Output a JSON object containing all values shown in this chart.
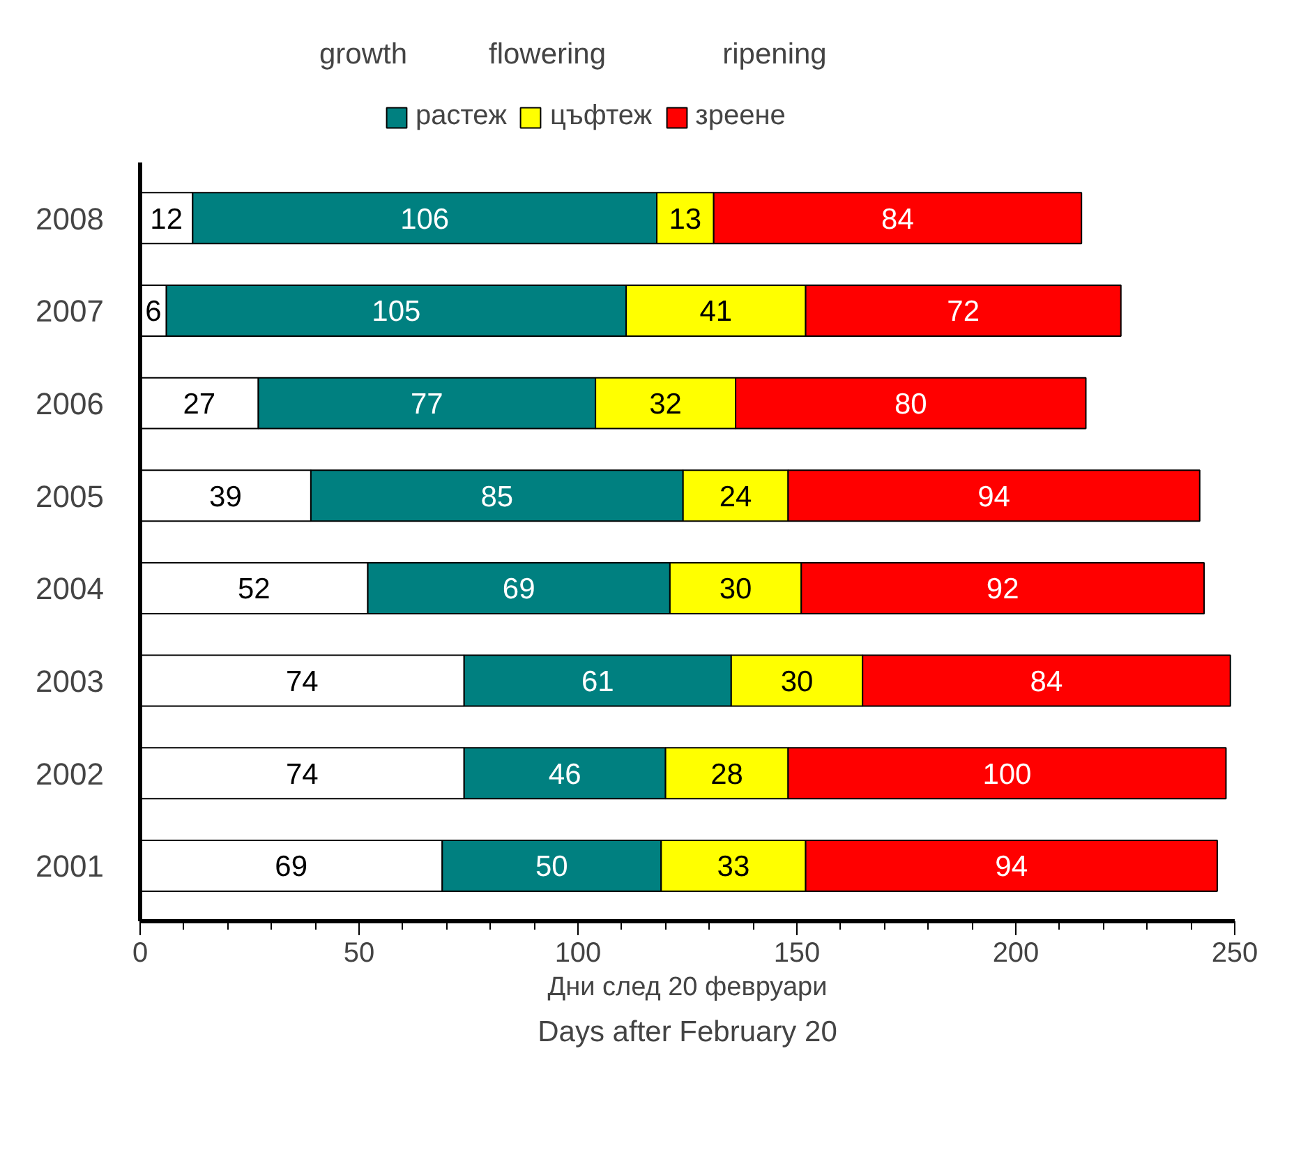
{
  "chart_data": {
    "type": "bar",
    "orientation": "horizontal",
    "stacked": true,
    "data_labels": true,
    "grid": false,
    "legend": "top",
    "categories": [
      "2008",
      "2007",
      "2006",
      "2005",
      "2004",
      "2003",
      "2002",
      "2001"
    ],
    "series": [
      {
        "color": "#ffffff",
        "values": [
          12,
          6,
          27,
          39,
          52,
          74,
          74,
          69
        ]
      },
      {
        "name": "растеж",
        "color": "#008080",
        "values": [
          106,
          105,
          77,
          85,
          69,
          61,
          46,
          50
        ]
      },
      {
        "name": "цъфтеж",
        "color": "#ffff00",
        "values": [
          13,
          41,
          32,
          24,
          30,
          30,
          28,
          33
        ]
      },
      {
        "name": "зреене",
        "color": "#ff0000",
        "values": [
          84,
          72,
          80,
          94,
          92,
          84,
          100,
          94
        ]
      }
    ],
    "xlim": [
      0,
      250
    ],
    "xticks": [
      0,
      {
        "value": 10,
        "label": null
      },
      {
        "value": 20,
        "label": null
      },
      {
        "value": 30,
        "label": null
      },
      {
        "value": 40,
        "label": null
      },
      50,
      {
        "value": 60,
        "label": null
      },
      {
        "value": 70,
        "label": null
      },
      {
        "value": 80,
        "label": null
      },
      {
        "value": 90,
        "label": null
      },
      100,
      {
        "value": 110,
        "label": null
      },
      {
        "value": 120,
        "label": null
      },
      {
        "value": 130,
        "label": null
      },
      {
        "value": 140,
        "label": null
      },
      150,
      {
        "value": 160,
        "label": null
      },
      {
        "value": 170,
        "label": null
      },
      {
        "value": 180,
        "label": null
      },
      {
        "value": 190,
        "label": null
      },
      200,
      {
        "value": 210,
        "label": null
      },
      {
        "value": 220,
        "label": null
      },
      {
        "value": 230,
        "label": null
      },
      {
        "value": 240,
        "label": null
      },
      250
    ],
    "xlabel": "Дни след 20 февруари",
    "annotations": [
      "growth",
      "flowering",
      "ripening",
      "Days after February 20"
    ]
  }
}
